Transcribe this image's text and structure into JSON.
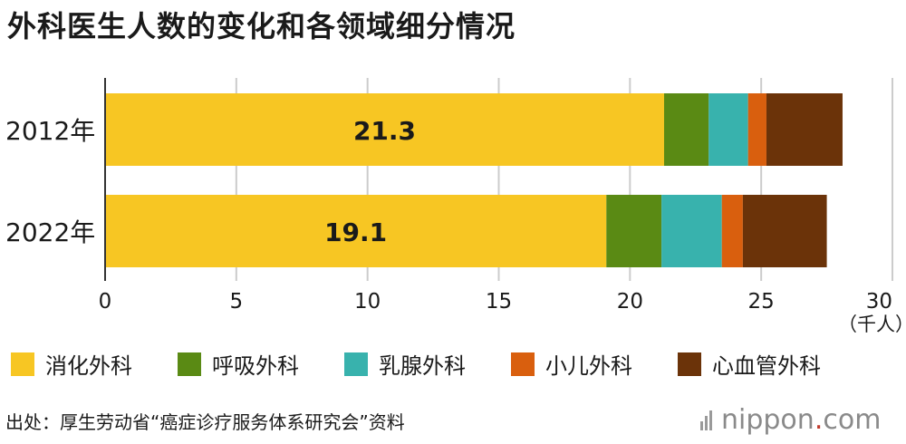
{
  "title": "外科医生人数的变化和各领域细分情况",
  "unit_label": "（千人）",
  "source": "出处：厚生劳动省“癌症诊疗服务体系研究会”资料",
  "logo": {
    "name": "nippon",
    "dot": ".",
    "suffix": "com"
  },
  "colors": {
    "digestive": "#f7c623",
    "respiratory": "#5a8a14",
    "breast": "#38b2ad",
    "pediatric": "#d95f0e",
    "cardiovascular": "#6b3309",
    "grid": "#cccccc",
    "axis": "#333333"
  },
  "chart_data": {
    "type": "bar",
    "orientation": "horizontal",
    "stacked": true,
    "categories": [
      "2012年",
      "2022年"
    ],
    "series": [
      {
        "name": "消化外科",
        "color_key": "digestive",
        "values": [
          21.3,
          19.1
        ],
        "data_labels": [
          "21.3",
          "19.1"
        ]
      },
      {
        "name": "呼吸外科",
        "color_key": "respiratory",
        "values": [
          1.7,
          2.1
        ]
      },
      {
        "name": "乳腺外科",
        "color_key": "breast",
        "values": [
          1.5,
          2.3
        ]
      },
      {
        "name": "小儿外科",
        "color_key": "pediatric",
        "values": [
          0.7,
          0.8
        ]
      },
      {
        "name": "心血管外科",
        "color_key": "cardiovascular",
        "values": [
          2.9,
          3.2
        ]
      }
    ],
    "xlim": [
      0,
      30
    ],
    "xticks": [
      0,
      5,
      10,
      15,
      20,
      25,
      30
    ],
    "xtick_labels": [
      "0",
      "5",
      "10",
      "15",
      "20",
      "25",
      "30"
    ],
    "grid": true,
    "legend_position": "bottom"
  }
}
